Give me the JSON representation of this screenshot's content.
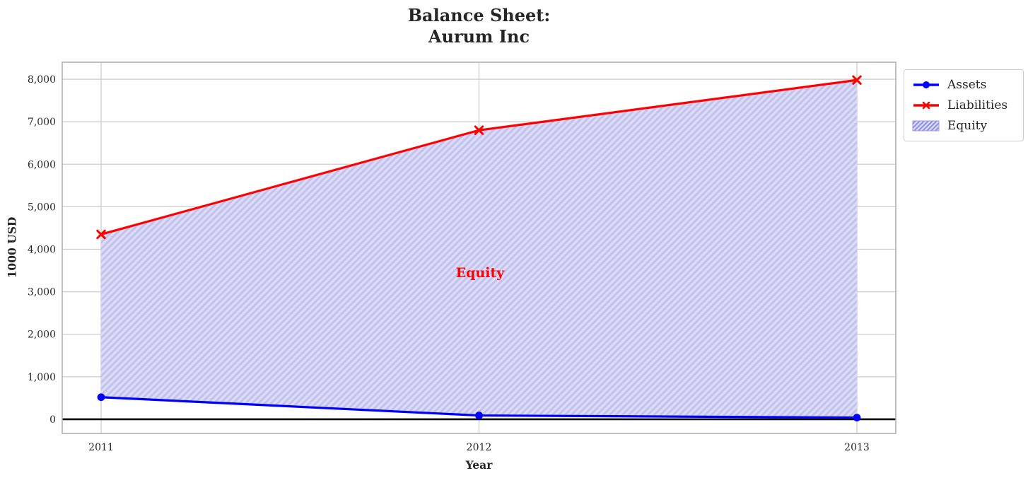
{
  "chart_data": {
    "type": "line",
    "title": "Balance Sheet:\nAurum Inc",
    "title_lines": [
      "Balance Sheet:",
      "Aurum Inc"
    ],
    "xlabel": "Year",
    "ylabel": "1000 USD",
    "x": [
      2011,
      2012,
      2013
    ],
    "xtick_labels": [
      "2011",
      "2012",
      "2013"
    ],
    "yticks": [
      0,
      1000,
      2000,
      3000,
      4000,
      5000,
      6000,
      7000,
      8000
    ],
    "ytick_labels": [
      "0",
      "1,000",
      "2,000",
      "3,000",
      "4,000",
      "5,000",
      "6,000",
      "7,000",
      "8,000"
    ],
    "ylim": [
      -333,
      8400
    ],
    "xlim_note": "x data padded ~4.7% inside plot box on each side",
    "series": [
      {
        "name": "Assets",
        "color": "#0000ff",
        "marker": "circle",
        "line_width": 3.2,
        "values": [
          520,
          90,
          40
        ]
      },
      {
        "name": "Liabilities",
        "color": "#ff0000",
        "marker": "x",
        "line_width": 3.2,
        "values": [
          4350,
          6800,
          7980
        ]
      }
    ],
    "area_between": {
      "name": "Equity",
      "upper_series": "Liabilities",
      "lower_series": "Assets",
      "fill_color": "#dcdcf7",
      "hatch_color": "#c2c2ef",
      "legend_hatch_color": "#8d8de4",
      "hatch_style": "//"
    },
    "annotation": {
      "text": "Equity",
      "color": "#ff0000",
      "x": 2012,
      "y": 3450
    },
    "grid": true,
    "zero_line": {
      "y": 0,
      "color": "#000000"
    },
    "legend": {
      "position": "outside upper right",
      "entries": [
        {
          "label": "Assets",
          "swatch": "blue line with circle marker"
        },
        {
          "label": "Liabilities",
          "swatch": "red line with x marker"
        },
        {
          "label": "Equity",
          "swatch": "hatched light blue patch"
        }
      ]
    },
    "colors": {
      "text": "#262626",
      "grid": "#cccccc",
      "plot_border": "#b0b0b0",
      "background": "#ffffff"
    }
  }
}
